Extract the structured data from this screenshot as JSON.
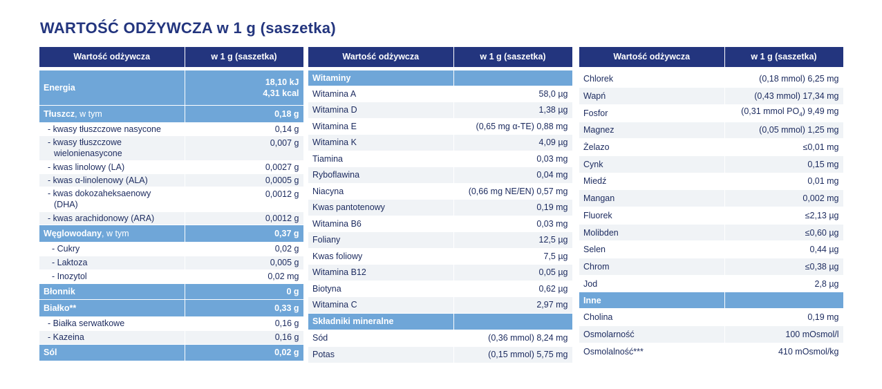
{
  "title": "WARTOŚĆ ODŻYWCZA w 1 g (saszetka)",
  "header": {
    "col1": "Wartość odżywcza",
    "col2": "w 1 g (saszetka)"
  },
  "table1": {
    "energia": {
      "label": "Energia",
      "kj": "18,10 kJ",
      "kcal": "4,31 kcal"
    },
    "tluszcz": {
      "label": "Tłuszcz",
      "suffix": ", w tym",
      "value": "0,18 g"
    },
    "tluszcz_items": [
      {
        "label": "- kwasy tłuszczowe nasycone",
        "value": "0,14 g"
      },
      {
        "label": "- kwasy tłuszczowe",
        "label2": "wielonienasycone",
        "value": "0,007 g"
      },
      {
        "label": "- kwas linolowy (LA)",
        "value": "0,0027 g"
      },
      {
        "label": "- kwas α-linolenowy (ALA)",
        "value": "0,0005 g"
      },
      {
        "label": "- kwas dokozaheksaenowy",
        "label2": "(DHA)",
        "value": "0,0012 g"
      },
      {
        "label": "- kwas arachidonowy (ARA)",
        "value": "0,0012 g"
      }
    ],
    "weglowodany": {
      "label": "Węglowodany",
      "suffix": ", w tym",
      "value": "0,37 g"
    },
    "weglowodany_items": [
      {
        "label": "- Cukry",
        "value": "0,02 g"
      },
      {
        "label": "- Laktoza",
        "value": "0,005 g"
      },
      {
        "label": "- Inozytol",
        "value": "0,02 mg"
      }
    ],
    "blonnik": {
      "label": "Błonnik",
      "value": "0 g"
    },
    "bialko": {
      "label": "Białko**",
      "value": "0,33 g"
    },
    "bialko_items": [
      {
        "label": "- Białka serwatkowe",
        "value": "0,16 g"
      },
      {
        "label": "- Kazeina",
        "value": "0,16 g"
      }
    ],
    "sol": {
      "label": "Sól",
      "value": "0,02 g"
    }
  },
  "table2": {
    "witaminy": {
      "label": "Witaminy"
    },
    "witaminy_items": [
      {
        "label": "Witamina A",
        "value": "58,0 µg"
      },
      {
        "label": "Witamina D",
        "value": "1,38 µg"
      },
      {
        "label": "Witamina E",
        "value": "(0,65 mg α-TE) 0,88 mg"
      },
      {
        "label": "Witamina K",
        "value": "4,09 µg"
      },
      {
        "label": "Tiamina",
        "value": "0,03 mg"
      },
      {
        "label": "Ryboflawina",
        "value": "0,04 mg"
      },
      {
        "label": "Niacyna",
        "value": "(0,66 mg NE/EN) 0,57 mg"
      },
      {
        "label": "Kwas pantotenowy",
        "value": "0,19 mg"
      },
      {
        "label": "Witamina B6",
        "value": "0,03 mg"
      },
      {
        "label": "Foliany",
        "value": "12,5 µg"
      },
      {
        "label": "Kwas foliowy",
        "value": "7,5 µg"
      },
      {
        "label": "Witamina B12",
        "value": "0,05 µg"
      },
      {
        "label": "Biotyna",
        "value": "0,62 µg"
      },
      {
        "label": "Witamina C",
        "value": "2,97 mg"
      }
    ],
    "mineralne": {
      "label": "Składniki mineralne"
    },
    "mineralne_items": [
      {
        "label": "Sód",
        "value": "(0,36 mmol) 8,24 mg"
      },
      {
        "label": "Potas",
        "value": "(0,15 mmol) 5,75 mg"
      }
    ]
  },
  "table3": {
    "minerals": [
      {
        "label": "Chlorek",
        "value": "(0,18 mmol) 6,25 mg"
      },
      {
        "label": "Wapń",
        "value": "(0,43 mmol) 17,34 mg"
      },
      {
        "label": "Fosfor",
        "value_pre": "(0,31 mmol PO",
        "value_sub": "4",
        "value_post": ") 9,49 mg"
      },
      {
        "label": "Magnez",
        "value": "(0,05 mmol) 1,25 mg"
      },
      {
        "label": "Żelazo",
        "value": "≤0,01 mg"
      },
      {
        "label": "Cynk",
        "value": "0,15 mg"
      },
      {
        "label": "Miedź",
        "value": "0,01 mg"
      },
      {
        "label": "Mangan",
        "value": "0,002 mg"
      },
      {
        "label": "Fluorek",
        "value": "≤2,13 µg"
      },
      {
        "label": "Molibden",
        "value": "≤0,60 µg"
      },
      {
        "label": "Selen",
        "value": "0,44 µg"
      },
      {
        "label": "Chrom",
        "value": "≤0,38 µg"
      },
      {
        "label": "Jod",
        "value": "2,8 µg"
      }
    ],
    "inne": {
      "label": "Inne"
    },
    "inne_items": [
      {
        "label": "Cholina",
        "value": "0,19 mg"
      },
      {
        "label": "Osmolarność",
        "value": "100 mOsmol/l"
      },
      {
        "label": "Osmolalność***",
        "value": "410 mOsmol/kg"
      }
    ]
  }
}
